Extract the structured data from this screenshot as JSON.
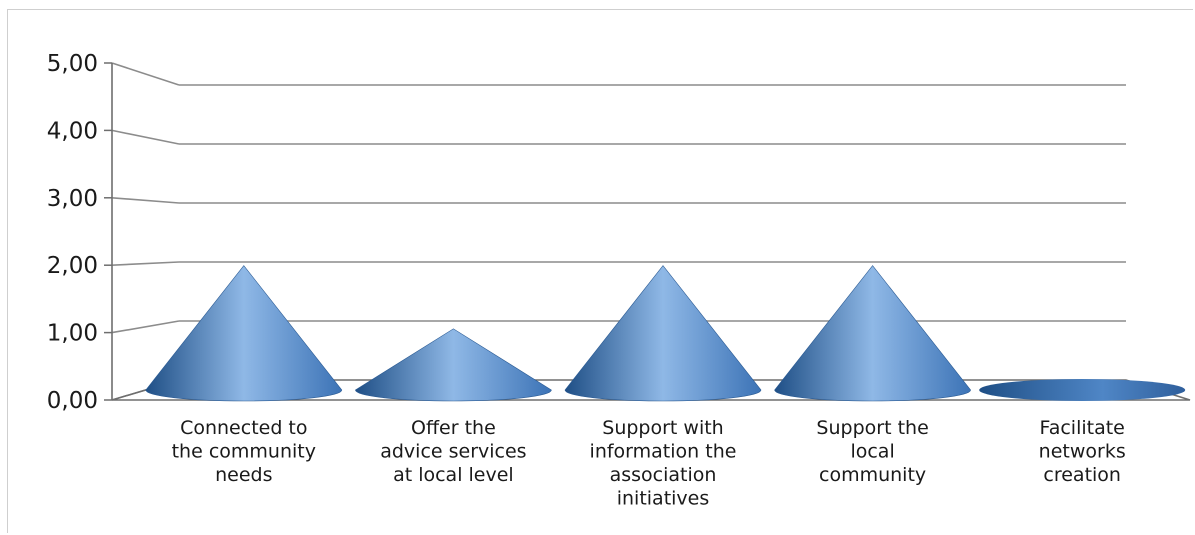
{
  "chart_data": {
    "type": "bar",
    "bar_shape": "cone-3d",
    "categories": [
      "Connected to the community needs",
      "Offer the advice services at local level",
      "Support with information the association initiatives",
      "Support the local community",
      "Facilitate networks creation"
    ],
    "category_lines": [
      [
        "Connected to",
        "the community",
        "needs"
      ],
      [
        "Offer the",
        "advice services",
        "at local level"
      ],
      [
        "Support with",
        "information the",
        "association",
        "initiatives"
      ],
      [
        "Support the",
        "local",
        "community"
      ],
      [
        "Facilitate",
        "networks",
        "creation"
      ]
    ],
    "values": [
      2.0,
      1.0,
      2.0,
      2.0,
      0.0
    ],
    "ylim": [
      0,
      5
    ],
    "yticks": [
      "0,00",
      "1,00",
      "2,00",
      "3,00",
      "4,00",
      "5,00"
    ],
    "grid": true,
    "colors": {
      "cone": "#4f86c6",
      "cone_light": "#8fb8e6",
      "cone_dark": "#1f4f86",
      "grid": "#8c8c8c",
      "axis": "#6e6e6e"
    }
  }
}
